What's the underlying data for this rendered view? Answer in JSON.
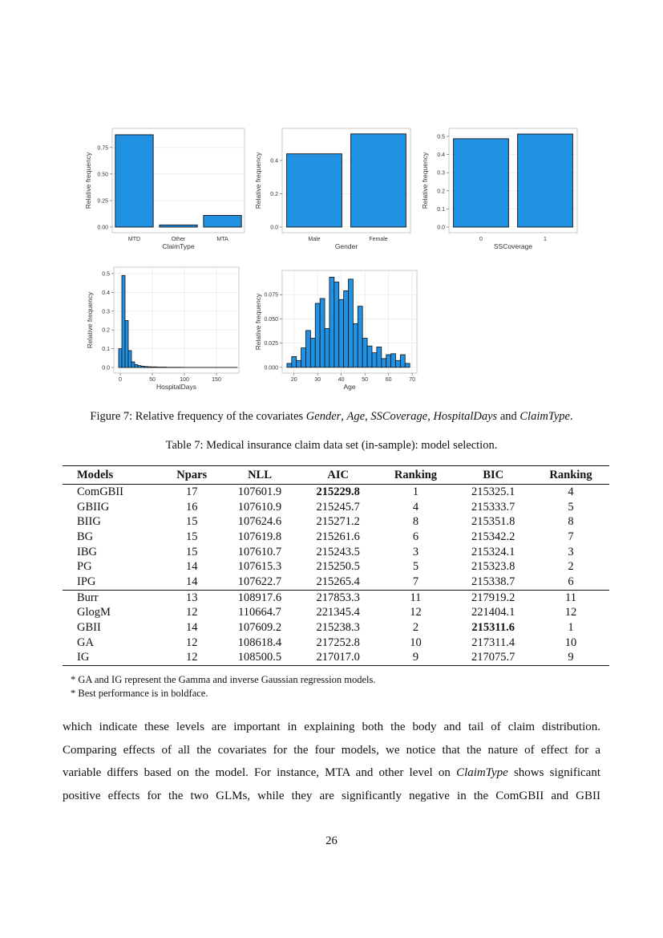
{
  "chart_data": [
    {
      "type": "bar",
      "categories": [
        "MTD",
        "Other",
        "MTA"
      ],
      "values": [
        0.87,
        0.02,
        0.11
      ],
      "color": "#2191e3",
      "xlabel": "ClaimType",
      "ylabel": "Relative frequency",
      "ylim": [
        -0.053,
        0.93
      ],
      "yticks": [
        {
          "value": 0,
          "label": "0.00"
        },
        0.25,
        {
          "value": 0.5,
          "label": "0.50"
        },
        0.75
      ],
      "grid": true
    },
    {
      "type": "bar",
      "categories": [
        "Male",
        "Female"
      ],
      "values": [
        0.44,
        0.56
      ],
      "color": "#2191e3",
      "xlabel": "Gender",
      "ylabel": "Relative frequency",
      "ylim": [
        -0.034,
        0.593
      ],
      "yticks": [
        {
          "value": 0,
          "label": "0.0"
        },
        0.2,
        0.4
      ],
      "grid": true
    },
    {
      "type": "bar",
      "categories": [
        "0",
        "1"
      ],
      "values": [
        0.487,
        0.513
      ],
      "color": "#2191e3",
      "xlabel": "SSCoverage",
      "ylabel": "Relative frequency",
      "ylim": [
        -0.031,
        0.544
      ],
      "yticks": [
        {
          "value": 0,
          "label": "0.0"
        },
        0.1,
        0.2,
        0.3,
        0.4,
        0.5
      ],
      "grid": true
    },
    {
      "type": "histogram",
      "bins": [
        -2.5,
        2.5,
        7.5,
        12.5,
        17.5,
        22.5,
        27.5,
        32.5,
        37.5,
        42.5,
        47.5,
        52.5,
        57.5,
        62.5,
        67.5,
        72.5,
        77.5,
        82.5,
        87.5,
        92.5,
        97.5,
        102.5,
        107.5,
        112.5,
        117.5,
        122.5,
        127.5,
        132.5,
        137.5,
        142.5,
        147.5,
        152.5,
        157.5,
        162.5,
        167.5,
        172.5,
        177.5,
        182.5
      ],
      "values": [
        0.1,
        0.49,
        0.25,
        0.09,
        0.03,
        0.015,
        0.01,
        0.007,
        0.005,
        0.004,
        0.003,
        0.003,
        0.002,
        0.002,
        0.002,
        0.001,
        0.001,
        0.001,
        0.001,
        0.001,
        0.0005,
        0.0005,
        0.0005,
        0.0005,
        0.0005,
        0.0005,
        0.0005,
        0.0005,
        0.0005,
        0.0005,
        0.0005,
        0.0005,
        0.0005,
        0.0005,
        0.0005,
        0.0005,
        0.0005
      ],
      "color": "#2191e3",
      "xlabel": "HospitalDays",
      "ylabel": "Relative frequency",
      "xlim": [
        -10,
        185
      ],
      "xticks": [
        0,
        50,
        100,
        150
      ],
      "ylim": [
        -0.03,
        0.534
      ],
      "yticks": [
        {
          "value": 0,
          "label": "0.0"
        },
        0.1,
        0.2,
        0.3,
        0.4,
        0.5
      ],
      "grid": true
    },
    {
      "type": "histogram",
      "bins": [
        17,
        19,
        21,
        23,
        25,
        27,
        29,
        31,
        33,
        35,
        37,
        39,
        41,
        43,
        45,
        47,
        49,
        51,
        53,
        55,
        57,
        59,
        61,
        63,
        65,
        67,
        69
      ],
      "values": [
        0.004,
        0.011,
        0.007,
        0.02,
        0.038,
        0.03,
        0.066,
        0.071,
        0.04,
        0.093,
        0.088,
        0.07,
        0.079,
        0.091,
        0.045,
        0.063,
        0.03,
        0.022,
        0.015,
        0.021,
        0.009,
        0.013,
        0.014,
        0.007,
        0.013,
        0.004
      ],
      "color": "#2191e3",
      "xlabel": "Age",
      "ylabel": "Relative frequency",
      "xlim": [
        15,
        72
      ],
      "xticks": [
        20,
        30,
        40,
        50,
        60,
        70
      ],
      "ylim": [
        -0.006,
        0.1
      ],
      "yticks": [
        {
          "value": 0,
          "label": "0.000"
        },
        0.025,
        {
          "value": 0.05,
          "label": "0.050"
        },
        0.075
      ],
      "grid": true
    }
  ],
  "figure_caption": [
    {
      "text": "Figure 7: Relative frequency of the covariates "
    },
    {
      "text": "Gender",
      "italic": true
    },
    {
      "text": ", "
    },
    {
      "text": "Age",
      "italic": true
    },
    {
      "text": ", "
    },
    {
      "text": "SSCoverage",
      "italic": true
    },
    {
      "text": ", "
    },
    {
      "text": "HospitalDays",
      "italic": true
    },
    {
      "text": " and "
    },
    {
      "text": "ClaimType",
      "italic": true
    },
    {
      "text": "."
    }
  ],
  "table": {
    "caption": "Table 7: Medical insurance claim data set (in-sample): model selection.",
    "header": [
      "Models",
      "Npars",
      "NLL",
      "AIC",
      "Ranking",
      "BIC",
      "Ranking"
    ],
    "groups": [
      [
        [
          "ComGBII",
          "17",
          "107601.9",
          {
            "text": "215229.8",
            "bold": true
          },
          "1",
          "215325.1",
          "4"
        ],
        [
          "GBIIG",
          "16",
          "107610.9",
          "215245.7",
          "4",
          "215333.7",
          "5"
        ],
        [
          "BIIG",
          "15",
          "107624.6",
          "215271.2",
          "8",
          "215351.8",
          "8"
        ],
        [
          "BG",
          "15",
          "107619.8",
          "215261.6",
          "6",
          "215342.2",
          "7"
        ],
        [
          "IBG",
          "15",
          "107610.7",
          "215243.5",
          "3",
          "215324.1",
          "3"
        ],
        [
          "PG",
          "14",
          "107615.3",
          "215250.5",
          "5",
          "215323.8",
          "2"
        ],
        [
          "IPG",
          "14",
          "107622.7",
          "215265.4",
          "7",
          "215338.7",
          "6"
        ]
      ],
      [
        [
          "Burr",
          "13",
          "108917.6",
          "217853.3",
          "11",
          "217919.2",
          "11"
        ],
        [
          "GlogM",
          "12",
          "110664.7",
          "221345.4",
          "12",
          "221404.1",
          "12"
        ],
        [
          "GBII",
          "14",
          "107609.2",
          "215238.3",
          "2",
          {
            "text": "215311.6",
            "bold": true
          },
          "1"
        ],
        [
          "GA",
          "12",
          "108618.4",
          "217252.8",
          "10",
          "217311.4",
          "10"
        ],
        [
          "IG",
          "12",
          "108500.5",
          "217017.0",
          "9",
          "217075.7",
          "9"
        ]
      ]
    ],
    "notes": [
      "* GA and IG represent the Gamma and inverse Gaussian regression models.",
      "* Best performance is in boldface."
    ]
  },
  "paragraph": [
    [
      {
        "text": "which indicate these levels are important in explaining both the body and tail of claim distribution."
      }
    ],
    [
      {
        "text": "Comparing effects of all the covariates for the four models, we notice that the nature of effect for a"
      }
    ],
    [
      {
        "text": "variable differs based on the model. For instance, MTA and other level on "
      },
      {
        "text": "ClaimType",
        "italic": true
      },
      {
        "text": " shows significant"
      }
    ],
    [
      {
        "text": "positive effects for the two GLMs, while they are significantly negative in the ComGBII and GBII"
      }
    ]
  ],
  "page_number": "26"
}
